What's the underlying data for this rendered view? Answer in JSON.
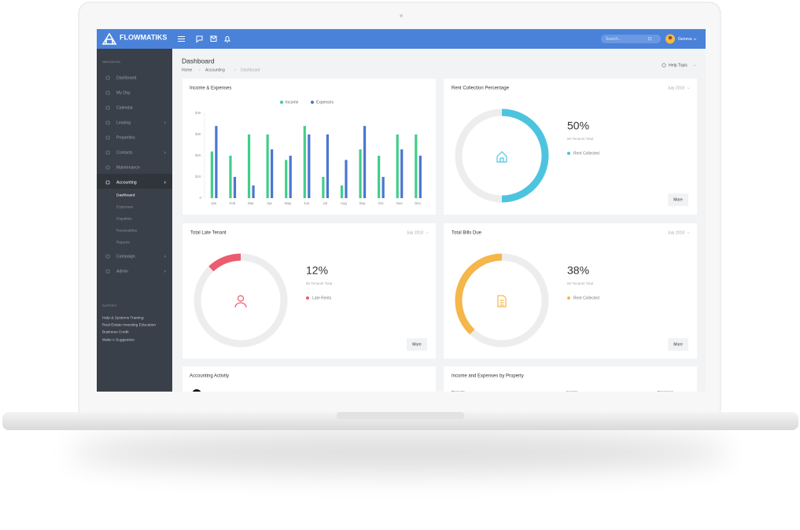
{
  "header": {
    "brand": "FLOWMATIKS",
    "search_placeholder": "Search...",
    "user": "Geneva"
  },
  "sidebar": {
    "nav_heading": "NAVIGATION",
    "items": [
      "Dashboard",
      "My Day",
      "Calendar",
      "Leasing",
      "Properties",
      "Contacts",
      "Maintenance",
      "Accounting",
      "Campaign",
      "Admin"
    ],
    "sub_items": [
      "Dashboard",
      "Expenses",
      "Payables",
      "Receivables",
      "Reports"
    ],
    "support_heading": "SUPPORT",
    "support_links": [
      "Help & Systems Training",
      "Real Estate Investing Education",
      "Business Credit",
      "Make A Suggestion"
    ]
  },
  "page": {
    "title": "Dashboard",
    "breadcrumb": [
      "Home",
      "Accounting",
      "Dashboard"
    ],
    "help": "Help Topic"
  },
  "chart_data": {
    "type": "bar",
    "title": "Income & Expenses",
    "categories": [
      "Jan",
      "Feb",
      "Mar",
      "Apr",
      "May",
      "Jun",
      "Jul",
      "Aug",
      "Sep",
      "Oct",
      "Nov",
      "Dec"
    ],
    "series": [
      {
        "name": "Income",
        "color": "#43cd8a",
        "values": [
          2200,
          2000,
          3000,
          3000,
          1800,
          3400,
          1000,
          600,
          2300,
          2000,
          3000,
          3000
        ]
      },
      {
        "name": "Expenses",
        "color": "#4a76cf",
        "values": [
          3400,
          1000,
          600,
          2300,
          2000,
          3000,
          3000,
          1800,
          3400,
          1000,
          2300,
          2000
        ]
      }
    ],
    "ylim": [
      0,
      4000
    ],
    "yticks": [
      0,
      {
        "value": 1000,
        "label": "$1K"
      },
      {
        "value": 2000,
        "label": "$2K"
      },
      {
        "value": 3000,
        "label": "$3K"
      },
      {
        "value": 4000,
        "label": "$4K"
      }
    ],
    "grid": false,
    "legend": "top"
  },
  "widgets": [
    {
      "title": "Rent Collection Percentage",
      "period": "July 2018",
      "value": 50,
      "value_label": "50%",
      "subtitle": "86 Tenants Total",
      "legend": "Rent Collected",
      "color": "#4dc4df",
      "button": "More"
    },
    {
      "title": "Total Late Tenant",
      "period": "July 2018",
      "value": 12,
      "value_label": "12%",
      "subtitle": "86 Tenants Total",
      "legend": "Late Rents",
      "color": "#ec5b6f",
      "button": "More"
    },
    {
      "title": "Total Bills Due",
      "period": "July 2018",
      "value": 38,
      "value_label": "38%",
      "subtitle": "86 Tenants Total",
      "legend": "Rent Collected",
      "color": "#f5b64a",
      "button": "More"
    }
  ],
  "cards": [
    {
      "title": "Accounting Activity"
    },
    {
      "title": "Income and Expenses by Property",
      "columns": [
        "Property",
        "Income",
        "Expenses"
      ]
    }
  ]
}
